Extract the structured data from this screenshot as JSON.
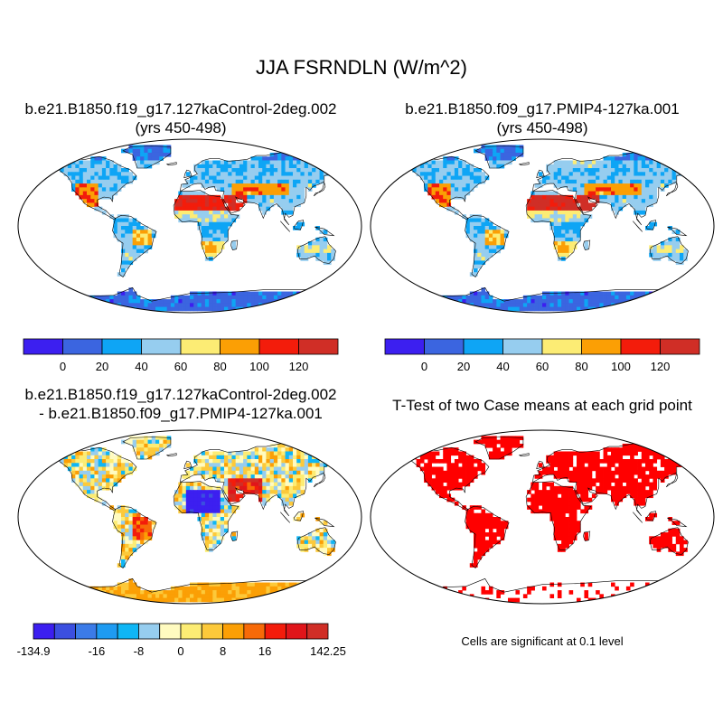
{
  "figure": {
    "title": "JJA FSRNDLN (W/m^2)",
    "panels": [
      {
        "line1": "b.e21.B1850.f19_g17.127kaControl-2deg.002",
        "line2": "(yrs 450-498)"
      },
      {
        "line1": "b.e21.B1850.f09_g17.PMIP4-127ka.001",
        "line2": "(yrs 450-498)"
      },
      {
        "line1": "b.e21.B1850.f19_g17.127kaControl-2deg.002",
        "line2": "- b.e21.B1850.f09_g17.PMIP4-127ka.001"
      },
      {
        "line1": "T-Test of two Case means at each grid point",
        "line2": ""
      }
    ],
    "significance_note": "Cells are significant at 0.1 level"
  },
  "chart_data": [
    {
      "type": "heatmap",
      "title": "b.e21.B1850.f19_g17.127kaControl-2deg.002 (yrs 450-498)",
      "colorbar": {
        "ticks": [
          "0",
          "20",
          "40",
          "60",
          "80",
          "100",
          "120"
        ],
        "levels": [
          0,
          20,
          40,
          60,
          80,
          100,
          120
        ],
        "colors": [
          "#3c1ff0",
          "#3b65e0",
          "#0ea5f5",
          "#96cdef",
          "#fcec74",
          "#fb9f05",
          "#f31c0b",
          "#d02e26"
        ]
      }
    },
    {
      "type": "heatmap",
      "title": "b.e21.B1850.f09_g17.PMIP4-127ka.001 (yrs 450-498)",
      "colorbar": {
        "ticks": [
          "0",
          "20",
          "40",
          "60",
          "80",
          "100",
          "120"
        ],
        "levels": [
          0,
          20,
          40,
          60,
          80,
          100,
          120
        ],
        "colors": [
          "#3c1ff0",
          "#3b65e0",
          "#0ea5f5",
          "#96cdef",
          "#fcec74",
          "#fb9f05",
          "#f31c0b",
          "#d02e26"
        ]
      }
    },
    {
      "type": "heatmap",
      "title": "b.e21.B1850.f19_g17.127kaControl-2deg.002 - b.e21.B1850.f09_g17.PMIP4-127ka.001",
      "colorbar": {
        "ticks": [
          "-134.9",
          "-16",
          "-8",
          "0",
          "8",
          "16",
          "142.25"
        ],
        "min": -134.9,
        "max": 142.25,
        "colors": [
          "#3c1ff0",
          "#3b4fe0",
          "#3b7be8",
          "#1e9bf2",
          "#0fb6f5",
          "#96cdef",
          "#fffbc0",
          "#fcec74",
          "#fcc93a",
          "#fb9f05",
          "#f76a08",
          "#f31c0b",
          "#e0151a",
          "#d02e26"
        ]
      }
    },
    {
      "type": "heatmap",
      "title": "T-Test of two Case means at each grid point",
      "significance_color": "#ff0000"
    }
  ]
}
